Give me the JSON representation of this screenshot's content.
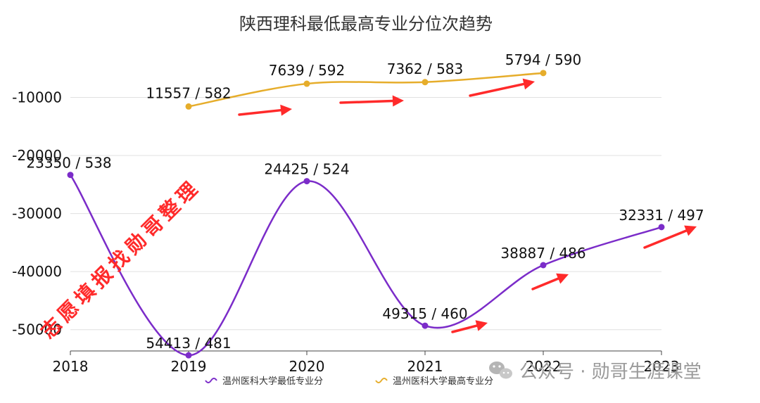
{
  "chart_data": {
    "type": "line",
    "title": "陕西理科最低最高专业分位次趋势",
    "categories": [
      "2018",
      "2019",
      "2020",
      "2021",
      "2022",
      "2023"
    ],
    "y_ticks": [
      "-10000",
      "-20000",
      "-30000",
      "-40000",
      "-50000"
    ],
    "ylim": [
      -55000,
      0
    ],
    "grid": true,
    "legend_position": "bottom",
    "series": [
      {
        "name": "温州医科大学最低专业分",
        "color": "#7b2cc9",
        "values": [
          -23350,
          -54413,
          -24425,
          -49315,
          -38887,
          -32331
        ],
        "labels": [
          "23350 / 538",
          "54413 / 481",
          "24425 / 524",
          "49315 / 460",
          "38887 / 486",
          "32331 / 497"
        ]
      },
      {
        "name": "温州医科大学最高专业分",
        "color": "#e6ad2b",
        "values": [
          null,
          -11557,
          -7639,
          -7362,
          -5794,
          null
        ],
        "labels": [
          null,
          "11557 / 582",
          "7639 / 592",
          "7362 / 583",
          "5794 / 590",
          null
        ]
      }
    ]
  },
  "watermark": {
    "text": "志愿填报找勋哥整理",
    "color": "#ff2a2a"
  },
  "branding": {
    "text": "公众号 · 勋哥生涯课堂",
    "icon": "wechat-icon"
  },
  "colors": {
    "arrow": "#ff2a2a",
    "grid": "#e0e0e0",
    "axis": "#444444"
  }
}
